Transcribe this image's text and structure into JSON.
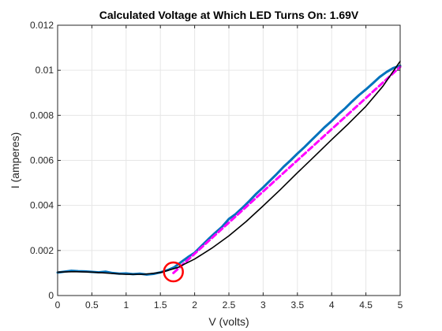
{
  "chart_data": {
    "type": "line",
    "title": "Calculated Voltage at Which LED Turns On: 1.69V",
    "xlabel": "V (volts)",
    "ylabel": "I (amperes)",
    "xlim": [
      0,
      5
    ],
    "ylim": [
      0,
      0.012
    ],
    "x_ticks": [
      0,
      0.5,
      1,
      1.5,
      2,
      2.5,
      3,
      3.5,
      4,
      4.5,
      5
    ],
    "x_tick_labels": [
      "0",
      "0.5",
      "1",
      "1.5",
      "2",
      "2.5",
      "3",
      "3.5",
      "4",
      "4.5",
      "5"
    ],
    "y_ticks": [
      0,
      0.002,
      0.004,
      0.006,
      0.008,
      0.01,
      0.012
    ],
    "y_tick_labels": [
      "0",
      "0.002",
      "0.004",
      "0.006",
      "0.008",
      "0.01",
      "0.012"
    ],
    "grid": true,
    "legend": "none",
    "series": [
      {
        "style": "measured",
        "color": "#0072BD",
        "x": [
          0,
          0.1,
          0.2,
          0.3,
          0.4,
          0.5,
          0.6,
          0.7,
          0.8,
          0.9,
          1.0,
          1.1,
          1.2,
          1.3,
          1.4,
          1.5,
          1.6,
          1.7,
          1.8,
          1.9,
          2.0,
          2.1,
          2.2,
          2.3,
          2.4,
          2.5,
          2.6,
          2.7,
          2.8,
          2.9,
          3.0,
          3.1,
          3.2,
          3.3,
          3.4,
          3.5,
          3.6,
          3.7,
          3.8,
          3.9,
          4.0,
          4.1,
          4.2,
          4.3,
          4.4,
          4.5,
          4.6,
          4.7,
          4.8,
          4.9,
          5.0
        ],
        "y": [
          0.00102,
          0.00106,
          0.0011,
          0.00108,
          0.00107,
          0.00105,
          0.00103,
          0.00106,
          0.001,
          0.00097,
          0.00098,
          0.00095,
          0.00097,
          0.00093,
          0.00096,
          0.00103,
          0.00112,
          0.00125,
          0.00148,
          0.0017,
          0.0019,
          0.0022,
          0.0025,
          0.00278,
          0.00305,
          0.0034,
          0.00362,
          0.0039,
          0.0042,
          0.00452,
          0.0048,
          0.0051,
          0.0054,
          0.00572,
          0.006,
          0.0063,
          0.00658,
          0.00688,
          0.00718,
          0.00748,
          0.00775,
          0.00805,
          0.00832,
          0.00862,
          0.0089,
          0.00915,
          0.00942,
          0.0097,
          0.00992,
          0.0101,
          0.0102
        ]
      },
      {
        "style": "linear-fit",
        "color": "#FF00FF",
        "dash": true,
        "x": [
          1.69,
          5.0
        ],
        "y": [
          0.001,
          0.01015
        ]
      },
      {
        "style": "smooth-fit",
        "color": "#000000",
        "x": [
          0,
          0.25,
          0.5,
          0.75,
          1.0,
          1.25,
          1.5,
          1.75,
          2.0,
          2.25,
          2.5,
          2.75,
          3.0,
          3.25,
          3.5,
          3.75,
          4.0,
          4.25,
          4.5,
          4.75,
          5.0
        ],
        "y": [
          0.00104,
          0.00106,
          0.00104,
          0.00099,
          0.00094,
          0.00094,
          0.00102,
          0.00124,
          0.00162,
          0.0021,
          0.00265,
          0.00328,
          0.00398,
          0.0047,
          0.00545,
          0.00618,
          0.00692,
          0.00764,
          0.0084,
          0.0093,
          0.0104
        ]
      }
    ],
    "annotations": [
      {
        "kind": "circle-marker",
        "color": "#FF0000",
        "x": 1.69,
        "y": 0.00105
      }
    ]
  }
}
